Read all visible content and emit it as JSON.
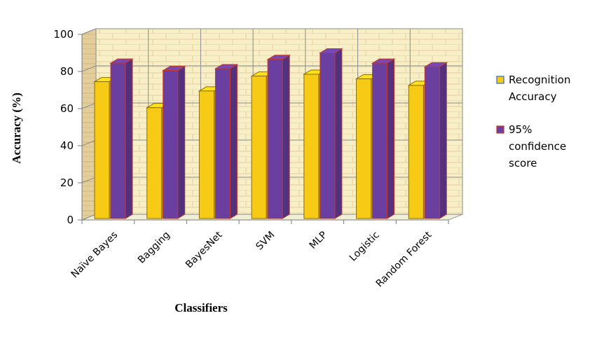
{
  "chart_data": {
    "type": "bar",
    "xlabel": "Classifiers",
    "ylabel": "Accuracy (%)",
    "ylim": [
      0,
      100
    ],
    "yticks": [
      0,
      20,
      40,
      60,
      80,
      100
    ],
    "categories": [
      "Naïve Bayes",
      "Bagging",
      "BayesNet",
      "SVM",
      "MLP",
      "Logistic",
      "Random Forest"
    ],
    "series": [
      {
        "name": "Recognition Accuracy",
        "color": "#F7CB15",
        "values": [
          74.5,
          60.5,
          69.5,
          77.5,
          78.5,
          76,
          72.5
        ]
      },
      {
        "name": "95% confidence score",
        "color": "#6B3FA0",
        "values": [
          84.5,
          80.5,
          81.5,
          86.5,
          90,
          84.5,
          82.5
        ]
      }
    ],
    "grid": true,
    "legend": "right",
    "legend_lines": [
      [
        "Recognition",
        "Accuracy"
      ],
      [
        "95%",
        "confidence",
        "score"
      ]
    ]
  }
}
